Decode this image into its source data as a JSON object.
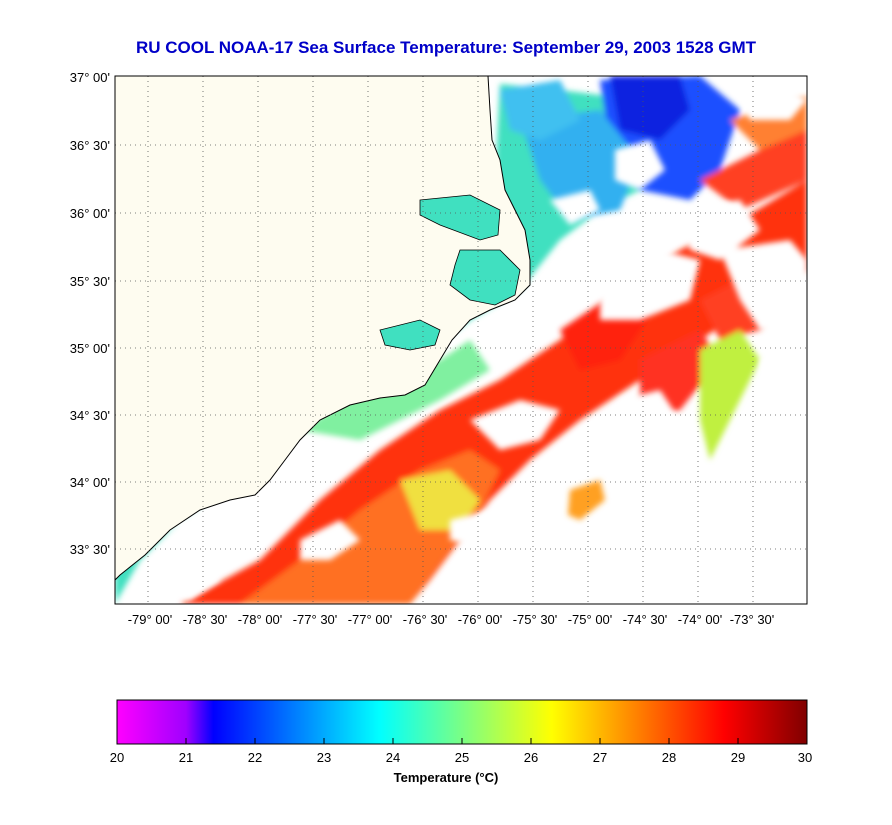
{
  "title": "RU COOL  NOAA-17  Sea Surface Temperature:  September 29, 2003 1528 GMT",
  "map": {
    "lat_labels": [
      "37° 00'",
      "36° 30'",
      "36° 00'",
      "35° 30'",
      "35° 00'",
      "34° 30'",
      "34° 00'",
      "33° 30'"
    ],
    "lon_labels": [
      "-79° 00'",
      "-78° 30'",
      "-78° 00'",
      "-77° 30'",
      "-77° 00'",
      "-76° 30'",
      "-76° 00'",
      "-75° 30'",
      "-75° 00'",
      "-74° 30'",
      "-74° 00'",
      "-73° 30'"
    ],
    "grid": true,
    "colors": {
      "land": "#fefcf0",
      "coastline": "#000000",
      "gridline": "#555555"
    }
  },
  "colorbar": {
    "min": 20,
    "max": 30,
    "tick_labels": [
      "20",
      "21",
      "22",
      "23",
      "24",
      "25",
      "26",
      "27",
      "28",
      "29",
      "30"
    ],
    "label": "Temperature (°C)",
    "colormap": [
      "#ff00ff",
      "#0000ff",
      "#00ffff",
      "#ffff00",
      "#ff0000",
      "#800000"
    ]
  }
}
